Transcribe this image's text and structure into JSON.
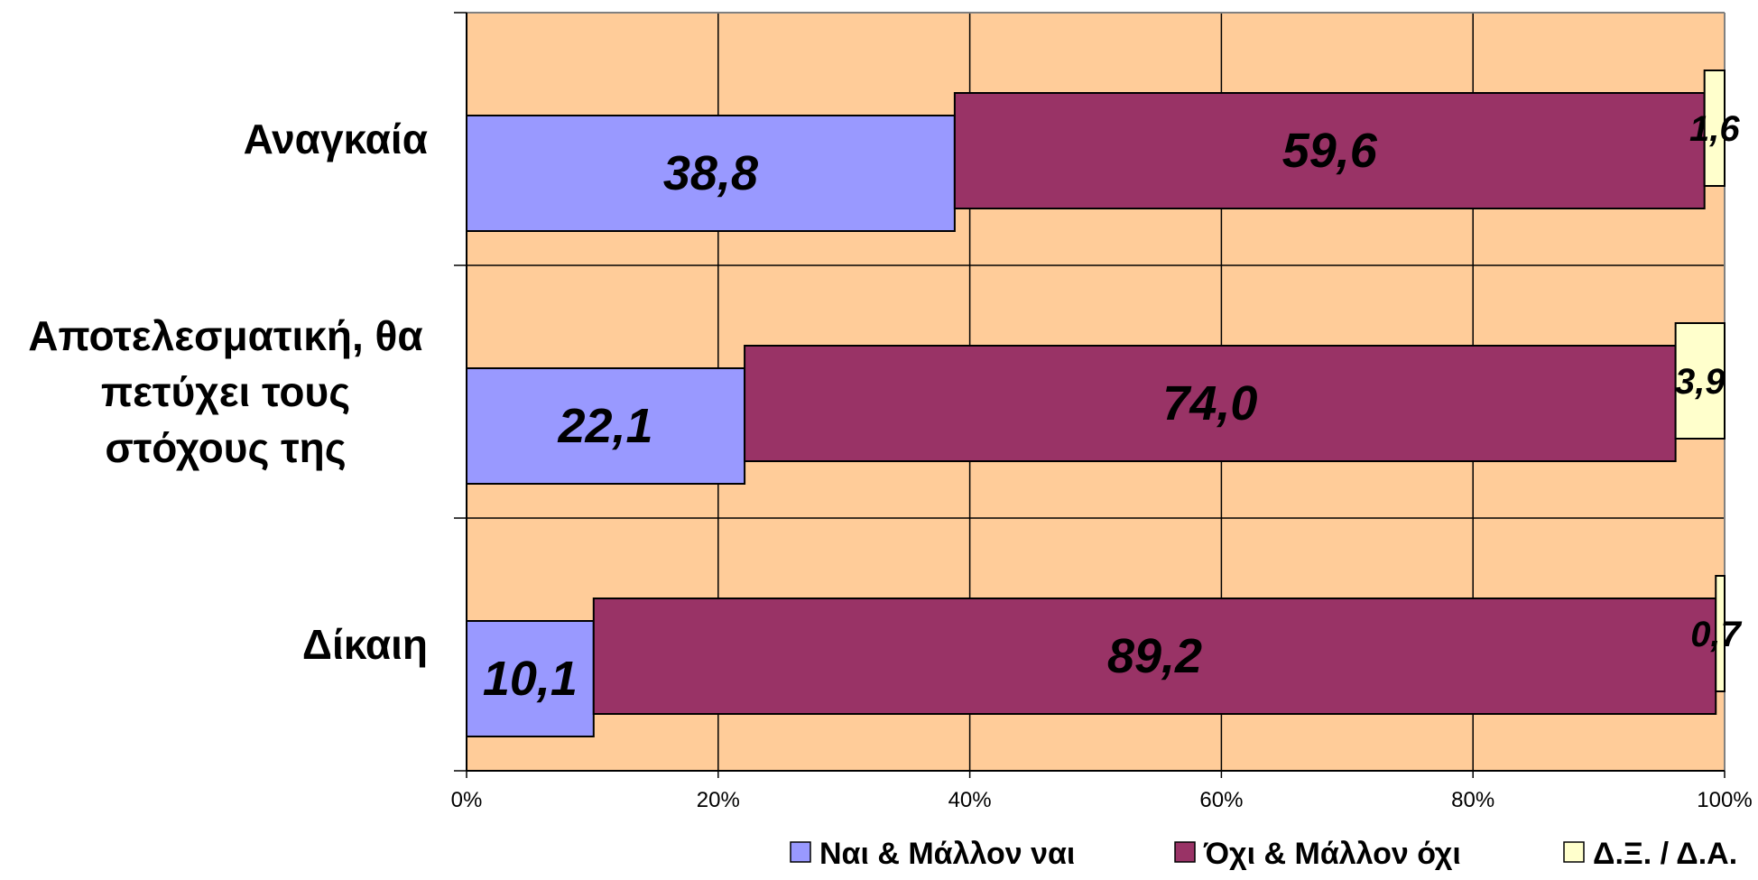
{
  "chart_data": {
    "type": "bar",
    "orientation": "horizontal",
    "stacked": "percent",
    "categories": [
      [
        "Αναγκαία"
      ],
      [
        "Αποτελεσματική, θα",
        "πετύχει τους",
        "στόχους της"
      ],
      [
        "Δίκαιη"
      ]
    ],
    "series": [
      {
        "name": "Ναι & Μάλλον ναι",
        "color": "#9999FF",
        "values": [
          38.8,
          22.1,
          10.1
        ],
        "labels": [
          "38,8",
          "22,1",
          "10,1"
        ]
      },
      {
        "name": "Όχι & Μάλλον όχι",
        "color": "#993366",
        "values": [
          59.6,
          74.0,
          89.2
        ],
        "labels": [
          "59,6",
          "74,0",
          "89,2"
        ]
      },
      {
        "name": "Δ.Ξ. / Δ.Α.",
        "color": "#FFFFCC",
        "values": [
          1.6,
          3.9,
          0.7
        ],
        "labels": [
          "1,6",
          "3,9",
          "0,7"
        ]
      }
    ],
    "xlim": [
      0,
      100
    ],
    "xticks": [
      "0%",
      "20%",
      "40%",
      "60%",
      "80%",
      "100%"
    ],
    "plot_background": "#FFCC99",
    "grid": true,
    "legend": "bottom"
  }
}
